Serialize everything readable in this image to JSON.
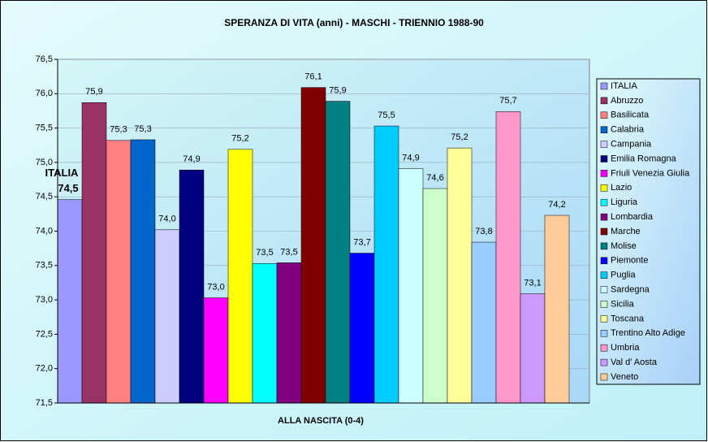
{
  "chart_data": {
    "type": "bar",
    "title": "SPERANZA DI VITA (anni) - MASCHI - TRIENNIO 1988-90",
    "categories": [
      "ALLA NASCITA (0-4)"
    ],
    "annotation": "ITALIA",
    "ylim": [
      71.5,
      76.5
    ],
    "yticks": [
      {
        "value": 71.5,
        "label": "71,5"
      },
      {
        "value": 72,
        "label": "72,0"
      },
      {
        "value": 72.5,
        "label": "72,5"
      },
      {
        "value": 73,
        "label": "73,0"
      },
      {
        "value": 73.5,
        "label": "73,5"
      },
      {
        "value": 74,
        "label": "74,0"
      },
      {
        "value": 74.5,
        "label": "74,5"
      },
      {
        "value": 75,
        "label": "75,0"
      },
      {
        "value": 75.5,
        "label": "75,5"
      },
      {
        "value": 76,
        "label": "76,0"
      },
      {
        "value": 76.5,
        "label": "76,5"
      }
    ],
    "grid": true,
    "legend": "right",
    "series": [
      {
        "name": "ITALIA",
        "color": "#9999ff",
        "values": [
          74.46
        ],
        "value_labels": [
          "74,5"
        ]
      },
      {
        "name": "Abruzzo",
        "color": "#993366",
        "values": [
          75.87
        ],
        "value_labels": [
          "75,9"
        ]
      },
      {
        "name": "Basilicata",
        "color": "#ff8080",
        "values": [
          75.32
        ],
        "value_labels": [
          "75,3"
        ]
      },
      {
        "name": "Calabria",
        "color": "#0066cc",
        "values": [
          75.33
        ],
        "value_labels": [
          "75,3"
        ]
      },
      {
        "name": "Campania",
        "color": "#ccccff",
        "values": [
          74.02
        ],
        "value_labels": [
          "74,0"
        ]
      },
      {
        "name": "Emilia Romagna",
        "color": "#000080",
        "values": [
          74.89
        ],
        "value_labels": [
          "74,9"
        ]
      },
      {
        "name": "Friuli Venezia Giulia",
        "color": "#ff00ff",
        "values": [
          73.03
        ],
        "value_labels": [
          "73,0"
        ]
      },
      {
        "name": "Lazio",
        "color": "#ffff00",
        "values": [
          75.19
        ],
        "value_labels": [
          "75,2"
        ]
      },
      {
        "name": "Liguria",
        "color": "#00ffff",
        "values": [
          73.53
        ],
        "value_labels": [
          "73,5"
        ]
      },
      {
        "name": "Lombardia",
        "color": "#800080",
        "values": [
          73.54
        ],
        "value_labels": [
          "73,5"
        ]
      },
      {
        "name": "Marche",
        "color": "#800000",
        "values": [
          76.09
        ],
        "value_labels": [
          "76,1"
        ]
      },
      {
        "name": "Molise",
        "color": "#008080",
        "values": [
          75.89
        ],
        "value_labels": [
          "75,9"
        ]
      },
      {
        "name": "Piemonte",
        "color": "#0000ff",
        "values": [
          73.68
        ],
        "value_labels": [
          "73,7"
        ]
      },
      {
        "name": "Puglia",
        "color": "#00ccff",
        "values": [
          75.53
        ],
        "value_labels": [
          "75,5"
        ]
      },
      {
        "name": "Sardegna",
        "color": "#ccffff",
        "values": [
          74.91
        ],
        "value_labels": [
          "74,9"
        ]
      },
      {
        "name": "Sicilia",
        "color": "#ccffcc",
        "values": [
          74.62
        ],
        "value_labels": [
          "74,6"
        ]
      },
      {
        "name": "Toscana",
        "color": "#ffff99",
        "values": [
          75.21
        ],
        "value_labels": [
          "75,2"
        ]
      },
      {
        "name": "Trentino Alto Adige",
        "color": "#99ccff",
        "values": [
          73.84
        ],
        "value_labels": [
          "73,8"
        ]
      },
      {
        "name": "Umbria",
        "color": "#ff99cc",
        "values": [
          75.74
        ],
        "value_labels": [
          "75,7"
        ]
      },
      {
        "name": "Val d' Aosta",
        "color": "#cc99ff",
        "values": [
          73.09
        ],
        "value_labels": [
          "73,1"
        ]
      },
      {
        "name": "Veneto",
        "color": "#ffcc99",
        "values": [
          74.23
        ],
        "value_labels": [
          "74,2"
        ]
      }
    ]
  }
}
